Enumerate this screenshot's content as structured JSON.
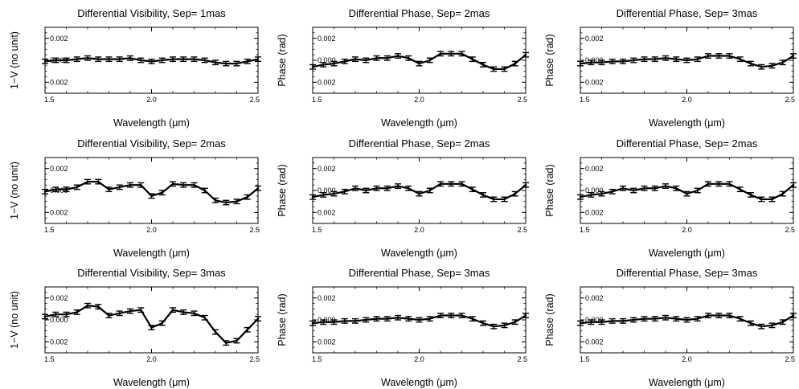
{
  "chart_data": [
    {
      "type": "line",
      "title": "Differential Visibility, Sep= 1mas",
      "xlabel": "Wavelength (μm)",
      "ylabel": "1−V (no unit)",
      "xlim": [
        1.5,
        2.5
      ],
      "ylim": [
        -0.003,
        0.003
      ],
      "xticks": [
        "1.5",
        "2.0",
        "2.5"
      ],
      "yticks": [
        "0.002",
        "0.000",
        "0.002"
      ],
      "x": [
        1.5,
        1.55,
        1.6,
        1.65,
        1.7,
        1.75,
        1.8,
        1.85,
        1.9,
        1.95,
        2.0,
        2.05,
        2.1,
        2.15,
        2.2,
        2.25,
        2.3,
        2.35,
        2.4,
        2.45,
        2.5
      ],
      "series": [
        {
          "values": [
            -0.0001,
            0.0,
            0.0,
            0.0001,
            0.0002,
            0.0001,
            0.0001,
            0.0001,
            0.0002,
            0.0,
            -0.0001,
            0.0,
            0.0001,
            0.0001,
            0.0001,
            0.0,
            -0.0002,
            -0.0003,
            -0.0003,
            -0.0001,
            0.0001
          ],
          "error": 0.0002
        }
      ]
    },
    {
      "type": "line",
      "title": "Differential Phase, Sep= 2mas",
      "xlabel": "Wavelength (μm)",
      "ylabel": "Phase (rad)",
      "xlim": [
        1.5,
        2.5
      ],
      "ylim": [
        -0.003,
        0.003
      ],
      "xticks": [
        "1.5",
        "2.0",
        "2.5"
      ],
      "yticks": [
        "0.002",
        "0.000",
        "0.002"
      ],
      "x": [
        1.5,
        1.55,
        1.6,
        1.65,
        1.7,
        1.75,
        1.8,
        1.85,
        1.9,
        1.95,
        2.0,
        2.05,
        2.1,
        2.15,
        2.2,
        2.25,
        2.3,
        2.35,
        2.4,
        2.45,
        2.5
      ],
      "series": [
        {
          "values": [
            -0.0006,
            -0.0004,
            -0.0003,
            -0.0001,
            0.0001,
            0.0,
            0.0002,
            0.0002,
            0.0004,
            0.0002,
            -0.0003,
            0.0,
            0.0006,
            0.0006,
            0.0006,
            0.0001,
            -0.0004,
            -0.0008,
            -0.0008,
            -0.0003,
            0.0005
          ],
          "error": 0.0002
        }
      ]
    },
    {
      "type": "line",
      "title": "Differential Phase, Sep= 3mas",
      "xlabel": "Wavelength (μm)",
      "ylabel": "Phase (rad)",
      "xlim": [
        1.5,
        2.5
      ],
      "ylim": [
        -0.003,
        0.003
      ],
      "xticks": [
        "1.5",
        "2.0",
        "2.5"
      ],
      "yticks": [
        "0.002",
        "0.000",
        "0.002"
      ],
      "x": [
        1.5,
        1.55,
        1.6,
        1.65,
        1.7,
        1.75,
        1.8,
        1.85,
        1.9,
        1.95,
        2.0,
        2.05,
        2.1,
        2.15,
        2.2,
        2.25,
        2.3,
        2.35,
        2.4,
        2.45,
        2.5
      ],
      "series": [
        {
          "values": [
            -0.0003,
            -0.0002,
            -0.0002,
            -0.0001,
            -0.0001,
            0.0,
            0.0001,
            0.0001,
            0.0002,
            0.0001,
            0.0,
            0.0001,
            0.0004,
            0.0004,
            0.0004,
            0.0001,
            -0.0003,
            -0.0006,
            -0.0005,
            -0.0002,
            0.0004
          ],
          "error": 0.0002
        }
      ]
    },
    {
      "type": "line",
      "title": "Differential Visibility, Sep= 2mas",
      "xlabel": "Wavelength (μm)",
      "ylabel": "1−V (no unit)",
      "xlim": [
        1.5,
        2.5
      ],
      "ylim": [
        -0.003,
        0.003
      ],
      "xticks": [
        "1.5",
        "2.0",
        "2.5"
      ],
      "yticks": [
        "0.002",
        "0.000",
        "0.002"
      ],
      "x": [
        1.5,
        1.55,
        1.6,
        1.65,
        1.7,
        1.75,
        1.8,
        1.85,
        1.9,
        1.95,
        2.0,
        2.05,
        2.1,
        2.15,
        2.2,
        2.25,
        2.3,
        2.35,
        2.4,
        2.45,
        2.5
      ],
      "series": [
        {
          "values": [
            -0.0001,
            0.0001,
            0.0001,
            0.0003,
            0.0008,
            0.0008,
            0.0001,
            0.0003,
            0.0005,
            0.0005,
            -0.0005,
            -0.0002,
            0.0006,
            0.0005,
            0.0005,
            0.0,
            -0.0009,
            -0.0011,
            -0.001,
            -0.0006,
            0.0002
          ],
          "error": 0.0002
        }
      ]
    },
    {
      "type": "line",
      "title": "Differential Phase, Sep= 2mas",
      "xlabel": "Wavelength (μm)",
      "ylabel": "Phase (rad)",
      "xlim": [
        1.5,
        2.5
      ],
      "ylim": [
        -0.003,
        0.003
      ],
      "xticks": [
        "1.5",
        "2.0",
        "2.5"
      ],
      "yticks": [
        "0.002",
        "0.000",
        "0.002"
      ],
      "x": [
        1.5,
        1.55,
        1.6,
        1.65,
        1.7,
        1.75,
        1.8,
        1.85,
        1.9,
        1.95,
        2.0,
        2.05,
        2.1,
        2.15,
        2.2,
        2.25,
        2.3,
        2.35,
        2.4,
        2.45,
        2.5
      ],
      "series": [
        {
          "values": [
            -0.0006,
            -0.0004,
            -0.0003,
            -0.0001,
            0.0002,
            0.0,
            0.0002,
            0.0002,
            0.0004,
            0.0002,
            -0.0003,
            0.0,
            0.0006,
            0.0006,
            0.0006,
            0.0001,
            -0.0004,
            -0.0008,
            -0.0008,
            -0.0003,
            0.0005
          ],
          "error": 0.0002
        }
      ]
    },
    {
      "type": "line",
      "title": "Differential Phase, Sep= 2mas",
      "xlabel": "Wavelength (μm)",
      "ylabel": "Phase (rad)",
      "xlim": [
        1.5,
        2.5
      ],
      "ylim": [
        -0.003,
        0.003
      ],
      "xticks": [
        "1.5",
        "2.0",
        "2.5"
      ],
      "yticks": [
        "0.002",
        "0.000",
        "0.002"
      ],
      "x": [
        1.5,
        1.55,
        1.6,
        1.65,
        1.7,
        1.75,
        1.8,
        1.85,
        1.9,
        1.95,
        2.0,
        2.05,
        2.1,
        2.15,
        2.2,
        2.25,
        2.3,
        2.35,
        2.4,
        2.45,
        2.5
      ],
      "series": [
        {
          "values": [
            -0.0006,
            -0.0004,
            -0.0003,
            -0.0001,
            0.0002,
            0.0,
            0.0002,
            0.0002,
            0.0004,
            0.0002,
            -0.0003,
            0.0,
            0.0006,
            0.0006,
            0.0006,
            0.0001,
            -0.0004,
            -0.0008,
            -0.0008,
            -0.0003,
            0.0005
          ],
          "error": 0.0002
        }
      ]
    },
    {
      "type": "line",
      "title": "Differential Visibility, Sep= 3mas",
      "xlabel": "Wavelength (μm)",
      "ylabel": "1−V (no unit)",
      "xlim": [
        1.5,
        2.5
      ],
      "ylim": [
        -0.003,
        0.003
      ],
      "xticks": [
        "1.5",
        "2.0",
        "2.5"
      ],
      "yticks": [
        "0.002",
        "0.000",
        "0.002"
      ],
      "x": [
        1.5,
        1.55,
        1.6,
        1.65,
        1.7,
        1.75,
        1.8,
        1.85,
        1.9,
        1.95,
        2.0,
        2.05,
        2.1,
        2.15,
        2.2,
        2.25,
        2.3,
        2.35,
        2.4,
        2.45,
        2.5
      ],
      "series": [
        {
          "values": [
            0.0003,
            0.0005,
            0.0005,
            0.0007,
            0.0013,
            0.0012,
            0.0004,
            0.0006,
            0.0008,
            0.0009,
            -0.0007,
            -0.0003,
            0.0009,
            0.0007,
            0.0006,
            0.0002,
            -0.0011,
            -0.0021,
            -0.0019,
            -0.0009,
            0.0001
          ],
          "error": 0.0002
        }
      ]
    },
    {
      "type": "line",
      "title": "Differential Phase, Sep= 3mas",
      "xlabel": "Wavelength (μm)",
      "ylabel": "Phase (rad)",
      "xlim": [
        1.5,
        2.5
      ],
      "ylim": [
        -0.003,
        0.003
      ],
      "xticks": [
        "1.5",
        "2.0",
        "2.5"
      ],
      "yticks": [
        "0.002",
        "0.000",
        "0.002"
      ],
      "x": [
        1.5,
        1.55,
        1.6,
        1.65,
        1.7,
        1.75,
        1.8,
        1.85,
        1.9,
        1.95,
        2.0,
        2.05,
        2.1,
        2.15,
        2.2,
        2.25,
        2.3,
        2.35,
        2.4,
        2.45,
        2.5
      ],
      "series": [
        {
          "values": [
            -0.0003,
            -0.0002,
            -0.0002,
            -0.0001,
            -0.0001,
            0.0,
            0.0001,
            0.0001,
            0.0002,
            0.0001,
            0.0,
            0.0001,
            0.0004,
            0.0004,
            0.0004,
            0.0001,
            -0.0003,
            -0.0006,
            -0.0005,
            -0.0002,
            0.0004
          ],
          "error": 0.0002
        }
      ]
    },
    {
      "type": "line",
      "title": "Differential Phase, Sep= 3mas",
      "xlabel": "Wavelength (μm)",
      "ylabel": "Phase (rad)",
      "xlim": [
        1.5,
        2.5
      ],
      "ylim": [
        -0.003,
        0.003
      ],
      "xticks": [
        "1.5",
        "2.0",
        "2.5"
      ],
      "yticks": [
        "0.002",
        "0.000",
        "0.002"
      ],
      "x": [
        1.5,
        1.55,
        1.6,
        1.65,
        1.7,
        1.75,
        1.8,
        1.85,
        1.9,
        1.95,
        2.0,
        2.05,
        2.1,
        2.15,
        2.2,
        2.25,
        2.3,
        2.35,
        2.4,
        2.45,
        2.5
      ],
      "series": [
        {
          "values": [
            -0.0003,
            -0.0002,
            -0.0002,
            -0.0001,
            -0.0001,
            0.0,
            0.0001,
            0.0001,
            0.0002,
            0.0001,
            0.0,
            0.0001,
            0.0004,
            0.0004,
            0.0004,
            0.0001,
            -0.0003,
            -0.0006,
            -0.0005,
            -0.0002,
            0.0004
          ],
          "error": 0.0002
        }
      ]
    }
  ]
}
